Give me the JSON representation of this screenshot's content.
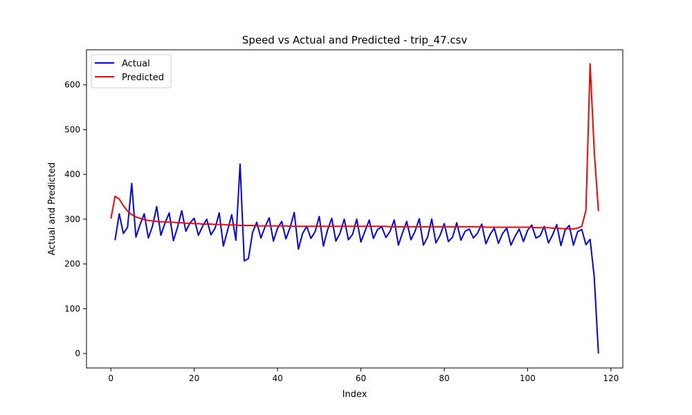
{
  "chart_data": {
    "type": "line",
    "title": "Speed vs Actual and Predicted - trip_47.csv",
    "xlabel": "Index",
    "ylabel": "Actual and Predicted",
    "xlim": [
      -5.85,
      122.85
    ],
    "ylim": [
      -32.3,
      678.3
    ],
    "xticks": [
      0,
      20,
      40,
      60,
      80,
      100,
      120
    ],
    "yticks": [
      0,
      100,
      200,
      300,
      400,
      500,
      600
    ],
    "grid": false,
    "legend": "top-left",
    "series": [
      {
        "name": "Actual",
        "color": "#0000ff",
        "x": [
          1,
          2,
          3,
          4,
          5,
          6,
          7,
          8,
          9,
          10,
          11,
          12,
          13,
          14,
          15,
          16,
          17,
          18,
          19,
          20,
          21,
          22,
          23,
          24,
          25,
          26,
          27,
          28,
          29,
          30,
          31,
          32,
          33,
          34,
          35,
          36,
          37,
          38,
          39,
          40,
          41,
          42,
          43,
          44,
          45,
          46,
          47,
          48,
          49,
          50,
          51,
          52,
          53,
          54,
          55,
          56,
          57,
          58,
          59,
          60,
          61,
          62,
          63,
          64,
          65,
          66,
          67,
          68,
          69,
          70,
          71,
          72,
          73,
          74,
          75,
          76,
          77,
          78,
          79,
          80,
          81,
          82,
          83,
          84,
          85,
          86,
          87,
          88,
          89,
          90,
          91,
          92,
          93,
          94,
          95,
          96,
          97,
          98,
          99,
          100,
          101,
          102,
          103,
          104,
          105,
          106,
          107,
          108,
          109,
          110,
          111,
          112,
          113,
          114,
          115,
          116,
          117
        ],
        "values": [
          253,
          312,
          268,
          282,
          380,
          260,
          288,
          312,
          258,
          285,
          328,
          264,
          292,
          314,
          252,
          282,
          319,
          273,
          292,
          302,
          264,
          284,
          300,
          265,
          280,
          314,
          240,
          275,
          310,
          253,
          423,
          207,
          212,
          270,
          293,
          258,
          283,
          303,
          251,
          280,
          295,
          256,
          281,
          315,
          233,
          268,
          284,
          257,
          272,
          306,
          240,
          276,
          302,
          251,
          269,
          300,
          254,
          266,
          300,
          249,
          274,
          298,
          257,
          277,
          283,
          259,
          273,
          298,
          242,
          270,
          295,
          254,
          273,
          301,
          242,
          260,
          300,
          247,
          264,
          290,
          250,
          260,
          292,
          253,
          273,
          278,
          258,
          269,
          289,
          245,
          266,
          280,
          246,
          268,
          280,
          242,
          262,
          278,
          250,
          275,
          287,
          258,
          263,
          284,
          247,
          265,
          288,
          241,
          276,
          286,
          242,
          272,
          277,
          243,
          255,
          170,
          0
        ]
      },
      {
        "name": "Predicted",
        "color": "#ff0000",
        "x": [
          0,
          1,
          2,
          3,
          4,
          5,
          6,
          7,
          8,
          9,
          10,
          11,
          12,
          13,
          14,
          15,
          16,
          17,
          18,
          19,
          20,
          21,
          22,
          23,
          24,
          25,
          26,
          27,
          28,
          29,
          30,
          31,
          32,
          33,
          34,
          35,
          36,
          37,
          38,
          39,
          40,
          41,
          42,
          43,
          44,
          45,
          46,
          47,
          48,
          49,
          50,
          51,
          52,
          53,
          54,
          55,
          56,
          57,
          58,
          59,
          60,
          61,
          62,
          63,
          64,
          65,
          66,
          67,
          68,
          69,
          70,
          71,
          72,
          73,
          74,
          75,
          76,
          77,
          78,
          79,
          80,
          81,
          82,
          83,
          84,
          85,
          86,
          87,
          88,
          89,
          90,
          91,
          92,
          93,
          94,
          95,
          96,
          97,
          98,
          99,
          100,
          101,
          102,
          103,
          104,
          105,
          106,
          107,
          108,
          109,
          110,
          111,
          112,
          113,
          114,
          115,
          116,
          117
        ],
        "values": [
          301,
          351,
          345,
          330,
          318,
          310,
          305,
          302,
          299,
          297,
          296,
          295,
          294,
          294,
          293,
          293,
          292,
          292,
          291,
          291,
          290,
          290,
          289,
          289,
          289,
          288,
          288,
          288,
          287,
          287,
          287,
          286,
          286,
          286,
          286,
          285,
          285,
          285,
          285,
          285,
          285,
          285,
          285,
          284,
          284,
          284,
          284,
          284,
          284,
          284,
          284,
          284,
          284,
          284,
          284,
          284,
          284,
          284,
          284,
          284,
          284,
          284,
          284,
          284,
          284,
          284,
          284,
          283,
          283,
          283,
          283,
          283,
          283,
          283,
          283,
          283,
          283,
          283,
          283,
          283,
          283,
          283,
          283,
          283,
          283,
          283,
          283,
          283,
          283,
          283,
          282,
          282,
          282,
          282,
          282,
          282,
          282,
          282,
          282,
          282,
          282,
          282,
          281,
          281,
          281,
          281,
          280,
          280,
          279,
          279,
          278,
          278,
          280,
          284,
          320,
          647,
          450,
          318
        ]
      }
    ]
  }
}
